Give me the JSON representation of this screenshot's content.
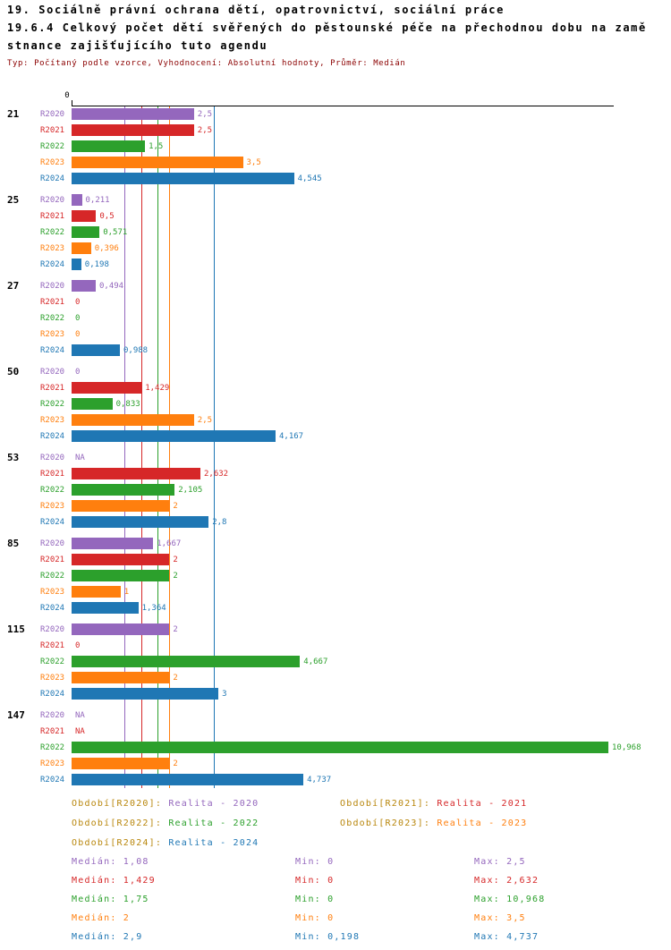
{
  "title": {
    "line1": "19. Sociálně právní ochrana dětí, opatrovnictví, sociální práce",
    "line2": "19.6.4 Celkový počet dětí svěřených do pěstounské péče na přechodnou dobu na zamě",
    "line3": "stnance zajišťujícího tuto agendu",
    "subtitle": "Typ: Počítaný podle vzorce, Vyhodnocení: Absolutní hodnoty, Průměr: Medián"
  },
  "axis": {
    "zero_label": "0"
  },
  "chart_data": {
    "type": "bar",
    "orientation": "horizontal",
    "title": "19.6.4 Celkový počet dětí svěřených do pěstounské péče na přechodnou dobu na zaměstnance zajišťujícího tuto agendu",
    "categories": [
      "21",
      "25",
      "27",
      "50",
      "53",
      "85",
      "115",
      "147"
    ],
    "xlim": [
      0,
      10.968
    ],
    "grid": false,
    "series": [
      {
        "name": "R2020",
        "color": "#9467bd",
        "median": 1.08,
        "values": [
          2.5,
          0.211,
          0.494,
          0,
          null,
          1.667,
          2,
          null
        ],
        "labels": [
          "2,5",
          "0,211",
          "0,494",
          "0",
          "NA",
          "1,667",
          "2",
          "NA"
        ]
      },
      {
        "name": "R2021",
        "color": "#d62728",
        "median": 1.429,
        "values": [
          2.5,
          0.5,
          0,
          1.429,
          2.632,
          2,
          0,
          null
        ],
        "labels": [
          "2,5",
          "0,5",
          "0",
          "1,429",
          "2,632",
          "2",
          "0",
          "NA"
        ]
      },
      {
        "name": "R2022",
        "color": "#2ca02c",
        "median": 1.75,
        "values": [
          1.5,
          0.571,
          0,
          0.833,
          2.105,
          2,
          4.667,
          10.968
        ],
        "labels": [
          "1,5",
          "0,571",
          "0",
          "0,833",
          "2,105",
          "2",
          "4,667",
          "10,968"
        ]
      },
      {
        "name": "R2023",
        "color": "#ff7f0e",
        "median": 2,
        "values": [
          3.5,
          0.396,
          0,
          2.5,
          2,
          1,
          2,
          2
        ],
        "labels": [
          "3,5",
          "0,396",
          "0",
          "2,5",
          "2",
          "1",
          "2",
          "2"
        ]
      },
      {
        "name": "R2024",
        "color": "#1f77b4",
        "median": 2.9,
        "values": [
          4.545,
          0.198,
          0.988,
          4.167,
          2.8,
          1.364,
          3,
          4.737
        ],
        "labels": [
          "4,545",
          "0,198",
          "0,988",
          "4,167",
          "2,8",
          "1,364",
          "3",
          "4,737"
        ]
      }
    ]
  },
  "legend": {
    "prefix_color": "#b8860b",
    "items": [
      {
        "series": "R2020",
        "prefix": "Období[R2020]:",
        "label": "Realita - 2020"
      },
      {
        "series": "R2021",
        "prefix": "Období[R2021]:",
        "label": "Realita - 2021"
      },
      {
        "series": "R2022",
        "prefix": "Období[R2022]:",
        "label": "Realita - 2022"
      },
      {
        "series": "R2023",
        "prefix": "Období[R2023]:",
        "label": "Realita - 2023"
      },
      {
        "series": "R2024",
        "prefix": "Období[R2024]:",
        "label": "Realita - 2024"
      }
    ]
  },
  "stats": {
    "rows": [
      {
        "series": "R2020",
        "median_label": "Medián",
        "median": "1,08",
        "min_label": "Min",
        "min": "0",
        "max_label": "Max",
        "max": "2,5"
      },
      {
        "series": "R2021",
        "median_label": "Medián",
        "median": "1,429",
        "min_label": "Min",
        "min": "0",
        "max_label": "Max",
        "max": "2,632"
      },
      {
        "series": "R2022",
        "median_label": "Medián",
        "median": "1,75",
        "min_label": "Min",
        "min": "0",
        "max_label": "Max",
        "max": "10,968"
      },
      {
        "series": "R2023",
        "median_label": "Medián",
        "median": "2",
        "min_label": "Min",
        "min": "0",
        "max_label": "Max",
        "max": "3,5"
      },
      {
        "series": "R2024",
        "median_label": "Medián",
        "median": "2,9",
        "min_label": "Min",
        "min": "0,198",
        "max_label": "Max",
        "max": "4,737"
      }
    ]
  }
}
